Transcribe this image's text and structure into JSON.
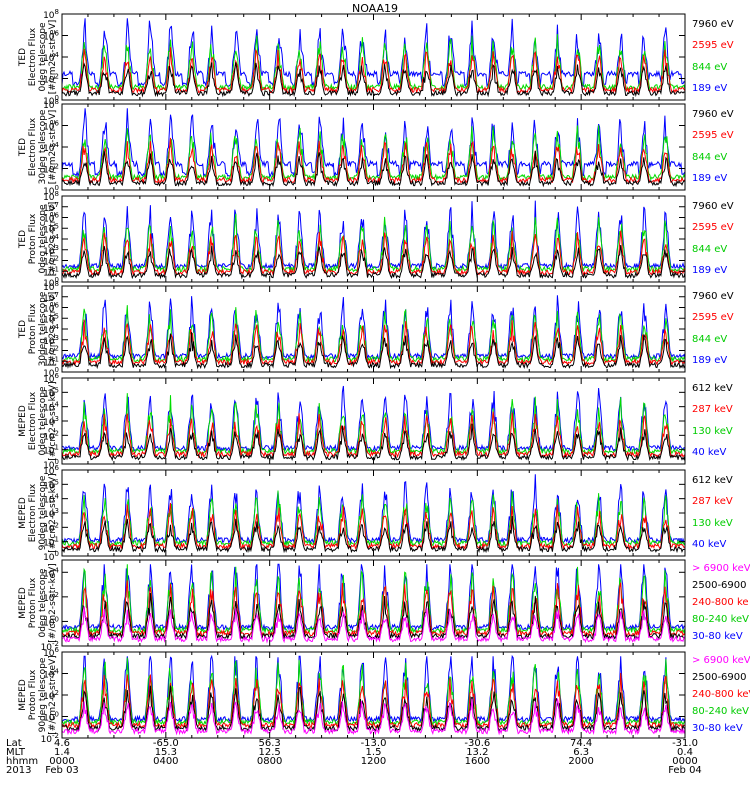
{
  "title": "NOAA19",
  "colors": {
    "black": "#000000",
    "red": "#ff0000",
    "green": "#00dd00",
    "blue": "#0000ff",
    "magenta": "#ff00ff"
  },
  "chart_data": [
    {
      "type": "line",
      "instrument": "TED",
      "ylabel": "TED\nElectron Flux\n0deg telescope\n[#/cm2-s-str-eV]",
      "yticks": [
        "10^0",
        "10^2",
        "10^4",
        "10^6",
        "10^8"
      ],
      "ylim_exp": [
        0,
        8
      ],
      "legend": [
        {
          "text": "7960 eV",
          "color": "#000000"
        },
        {
          "text": "2595 eV",
          "color": "#ff0000"
        },
        {
          "text": "844 eV",
          "color": "#00dd00"
        },
        {
          "text": "189 eV",
          "color": "#0000ff"
        }
      ]
    },
    {
      "type": "line",
      "instrument": "TED",
      "ylabel": "TED\nElectron Flux\n30deg telescope\n[#/cm2-s-str-eV]",
      "yticks": [
        "10^0",
        "10^2",
        "10^4",
        "10^6",
        "10^8"
      ],
      "ylim_exp": [
        0,
        8
      ],
      "legend": [
        {
          "text": "7960 eV",
          "color": "#000000"
        },
        {
          "text": "2595 eV",
          "color": "#ff0000"
        },
        {
          "text": "844 eV",
          "color": "#00dd00"
        },
        {
          "text": "189 eV",
          "color": "#0000ff"
        }
      ]
    },
    {
      "type": "line",
      "instrument": "TED",
      "ylabel": "TED\nProton Flux\n0deg telescope\n[#/cm2-s-str-eV]",
      "yticks": [
        "10^0",
        "10^1",
        "10^2",
        "10^3",
        "10^4",
        "10^5",
        "10^6",
        "10^7",
        "10^8"
      ],
      "ylim_exp": [
        0,
        8
      ],
      "legend": [
        {
          "text": "7960 eV",
          "color": "#000000"
        },
        {
          "text": "2595 eV",
          "color": "#ff0000"
        },
        {
          "text": "844 eV",
          "color": "#00dd00"
        },
        {
          "text": "189 eV",
          "color": "#0000ff"
        }
      ]
    },
    {
      "type": "line",
      "instrument": "TED",
      "ylabel": "TED\nProton Flux\n30deg telescope\n[#/cm2-s-str-eV]",
      "yticks": [
        "10^0",
        "10^1",
        "10^2",
        "10^3",
        "10^4",
        "10^5",
        "10^6",
        "10^7",
        "10^8"
      ],
      "ylim_exp": [
        0,
        8
      ],
      "legend": [
        {
          "text": "7960 eV",
          "color": "#000000"
        },
        {
          "text": "2595 eV",
          "color": "#ff0000"
        },
        {
          "text": "844 eV",
          "color": "#00dd00"
        },
        {
          "text": "189 eV",
          "color": "#0000ff"
        }
      ]
    },
    {
      "type": "line",
      "instrument": "MEPED",
      "ylabel": "MEPED\nElectron Flux\n0deg telescope\n[#/cm2-s-str-keV]",
      "yticks": [
        "10^0",
        "10^1",
        "10^2",
        "10^3",
        "10^4",
        "10^5",
        "10^6"
      ],
      "ylim_exp": [
        0,
        6
      ],
      "legend": [
        {
          "text": "612 keV",
          "color": "#000000"
        },
        {
          "text": "287 keV",
          "color": "#ff0000"
        },
        {
          "text": "130 keV",
          "color": "#00dd00"
        },
        {
          "text": "40 keV",
          "color": "#0000ff"
        }
      ]
    },
    {
      "type": "line",
      "instrument": "MEPED",
      "ylabel": "MEPED\nElectron Flux\n90deg telescope\n[#/cm2-s-str-keV]",
      "yticks": [
        "10^0",
        "10^1",
        "10^2",
        "10^3",
        "10^4",
        "10^5",
        "10^6"
      ],
      "ylim_exp": [
        0,
        6
      ],
      "legend": [
        {
          "text": "612 keV",
          "color": "#000000"
        },
        {
          "text": "287 keV",
          "color": "#ff0000"
        },
        {
          "text": "130 keV",
          "color": "#00dd00"
        },
        {
          "text": "40 keV",
          "color": "#0000ff"
        }
      ]
    },
    {
      "type": "line",
      "instrument": "MEPED",
      "ylabel": "MEPED\nProton Flux\n0deg telescope\n[#/cm2-s-str-keV]",
      "yticks": [
        "10^-2",
        "10^0",
        "10^2",
        "10^4"
      ],
      "ylim_exp": [
        -2,
        5
      ],
      "legend": [
        {
          "text": "> 6900 keV",
          "color": "#ff00ff"
        },
        {
          "text": "2500-6900",
          "color": "#000000"
        },
        {
          "text": "240-800 ke",
          "color": "#ff0000"
        },
        {
          "text": "80-240 keV",
          "color": "#00dd00"
        },
        {
          "text": "30-80 keV",
          "color": "#0000ff"
        }
      ]
    },
    {
      "type": "line",
      "instrument": "MEPED",
      "ylabel": "MEPED\nProton Flux\n90deg telescope\n[#/cm2-s-str-keV]",
      "yticks": [
        "10^-2",
        "10^0",
        "10^2",
        "10^4",
        "10^6"
      ],
      "ylim_exp": [
        -2,
        6
      ],
      "legend": [
        {
          "text": "> 6900 keV",
          "color": "#ff00ff"
        },
        {
          "text": "2500-6900",
          "color": "#000000"
        },
        {
          "text": "240-800 keV",
          "color": "#ff0000"
        },
        {
          "text": "80-240 keV",
          "color": "#00dd00"
        },
        {
          "text": "30-80 keV",
          "color": "#0000ff"
        }
      ]
    }
  ],
  "x_axis": {
    "row_labels": [
      "Lat",
      "MLT",
      "hhmm",
      "2013"
    ],
    "hours": [
      0,
      4,
      8,
      12,
      16,
      20,
      24
    ],
    "ticks": [
      {
        "lat": "4.6",
        "mlt": "1.4",
        "hhmm": "0000",
        "date": "Feb 03"
      },
      {
        "lat": "-65.0",
        "mlt": "15.3",
        "hhmm": "0400",
        "date": ""
      },
      {
        "lat": "56.3",
        "mlt": "12.5",
        "hhmm": "0800",
        "date": ""
      },
      {
        "lat": "-13.0",
        "mlt": "1.5",
        "hhmm": "1200",
        "date": ""
      },
      {
        "lat": "-30.6",
        "mlt": "13.2",
        "hhmm": "1600",
        "date": ""
      },
      {
        "lat": "74.4",
        "mlt": "6.3",
        "hhmm": "2000",
        "date": ""
      },
      {
        "lat": "-31.0",
        "mlt": "0.4",
        "hhmm": "0000",
        "date": "Feb 04"
      }
    ]
  }
}
